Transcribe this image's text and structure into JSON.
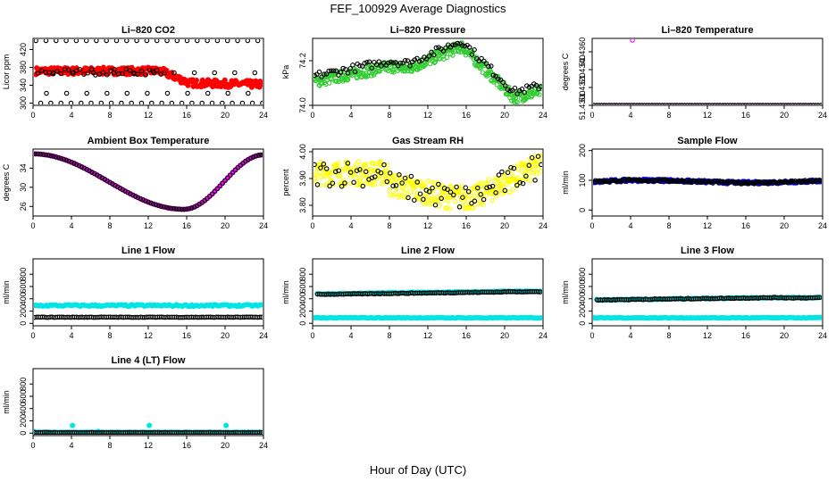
{
  "figure": {
    "title": "FEF_100929  Average Diagnostics",
    "xlabel": "Hour of Day (UTC)"
  },
  "chart_data": [
    {
      "type": "scatter",
      "title": "Li–820 CO2",
      "ylabel": "Licor ppm",
      "xlim": [
        0,
        24
      ],
      "ylim": [
        295,
        445
      ],
      "xticks": [
        0,
        4,
        8,
        12,
        16,
        20,
        24
      ],
      "yticks": [
        {
          "v": 300,
          "label": "300"
        },
        {
          "v": 340,
          "label": "340"
        },
        {
          "v": 380,
          "label": "380"
        },
        {
          "v": 420,
          "label": "420"
        }
      ],
      "series": [
        {
          "color": "#ff0000",
          "marker": "filled",
          "pattern": "co2"
        },
        {
          "color": "#000000",
          "marker": "open",
          "pattern": "co2_outliers"
        }
      ]
    },
    {
      "type": "scatter",
      "title": "Li–820 Pressure",
      "ylabel": "kPa",
      "xlim": [
        0,
        24
      ],
      "ylim": [
        74.0,
        74.3
      ],
      "xticks": [
        0,
        4,
        8,
        12,
        16,
        20,
        24
      ],
      "yticks": [
        {
          "v": 74.0,
          "label": "74.0"
        },
        {
          "v": 74.2,
          "label": "74.2"
        }
      ],
      "series": [
        {
          "color": "#33cc33",
          "marker": "open",
          "pattern": "pressure_dense"
        },
        {
          "color": "#000000",
          "marker": "open",
          "pattern": "pressure"
        }
      ]
    },
    {
      "type": "scatter",
      "title": "Li–820 Temperature",
      "ylabel": "degrees C",
      "xlim": [
        0,
        24
      ],
      "ylim": [
        51.43,
        51.4375
      ],
      "xticks": [
        0,
        4,
        8,
        12,
        16,
        20,
        24
      ],
      "yticks": [
        {
          "v": 51.43,
          "label": "51.4300"
        },
        {
          "v": 51.432,
          "label": "51.4320"
        },
        {
          "v": 51.434,
          "label": "51.4340"
        },
        {
          "v": 51.436,
          "label": "51.4360"
        }
      ],
      "series": [
        {
          "color": "#ff00ff",
          "marker": "open",
          "pattern": "temp_flat",
          "spike": [
            4.2,
            51.4373
          ]
        },
        {
          "color": "#000000",
          "marker": "open",
          "pattern": "temp_flat"
        }
      ]
    },
    {
      "type": "scatter",
      "title": "Ambient Box Temperature",
      "ylabel": "degrees C",
      "xlim": [
        0,
        24
      ],
      "ylim": [
        24,
        38
      ],
      "xticks": [
        0,
        4,
        8,
        12,
        16,
        20,
        24
      ],
      "yticks": [
        {
          "v": 26,
          "label": "26"
        },
        {
          "v": 30,
          "label": "30"
        },
        {
          "v": 34,
          "label": "34"
        }
      ],
      "series": [
        {
          "color": "#ff00ff",
          "marker": "filled",
          "pattern": "ambient"
        },
        {
          "color": "#000000",
          "marker": "open",
          "pattern": "ambient"
        }
      ]
    },
    {
      "type": "scatter",
      "title": "Gas Stream RH",
      "ylabel": "percent",
      "xlim": [
        0,
        24
      ],
      "ylim": [
        3.76,
        4.01
      ],
      "xticks": [
        0,
        4,
        8,
        12,
        16,
        20,
        24
      ],
      "yticks": [
        {
          "v": 3.8,
          "label": "3.80"
        },
        {
          "v": 3.9,
          "label": "3.90"
        },
        {
          "v": 4.0,
          "label": "4.00"
        }
      ],
      "series": [
        {
          "color": "#ffff00",
          "marker": "open",
          "pattern": "rh_dense"
        },
        {
          "color": "#000000",
          "marker": "open",
          "pattern": "rh"
        }
      ]
    },
    {
      "type": "scatter",
      "title": "Sample Flow",
      "ylabel": "ml/min",
      "xlim": [
        0,
        24
      ],
      "ylim": [
        -20,
        205
      ],
      "xticks": [
        0,
        4,
        8,
        12,
        16,
        20,
        24
      ],
      "yticks": [
        {
          "v": 0,
          "label": "0"
        },
        {
          "v": 100,
          "label": "100"
        },
        {
          "v": 200,
          "label": "200"
        }
      ],
      "series": [
        {
          "color": "#0000ff",
          "marker": "filled",
          "pattern": "sample"
        },
        {
          "color": "#000000",
          "marker": "open",
          "pattern": "sample"
        }
      ]
    },
    {
      "type": "scatter",
      "title": "Line 1 Flow",
      "ylabel": "ml/min",
      "xlim": [
        0,
        24
      ],
      "ylim": [
        -40,
        1050
      ],
      "xticks": [
        0,
        4,
        8,
        12,
        16,
        20,
        24
      ],
      "yticks": [
        {
          "v": 0,
          "label": "0"
        },
        {
          "v": 200,
          "label": "200"
        },
        {
          "v": 400,
          "label": "400"
        },
        {
          "v": 600,
          "label": "600"
        },
        {
          "v": 800,
          "label": "800"
        }
      ],
      "series": [
        {
          "color": "#00e5e5",
          "marker": "filled",
          "pattern": "flat",
          "level": 290,
          "amp": 14
        },
        {
          "color": "#000000",
          "marker": "open",
          "pattern": "flat",
          "level": 100,
          "amp": 4
        }
      ]
    },
    {
      "type": "scatter",
      "title": "Line 2 Flow",
      "ylabel": "ml/min",
      "xlim": [
        0,
        24
      ],
      "ylim": [
        -40,
        1050
      ],
      "xticks": [
        0,
        4,
        8,
        12,
        16,
        20,
        24
      ],
      "yticks": [
        {
          "v": 0,
          "label": "0"
        },
        {
          "v": 200,
          "label": "200"
        },
        {
          "v": 400,
          "label": "400"
        },
        {
          "v": 600,
          "label": "600"
        },
        {
          "v": 800,
          "label": "800"
        }
      ],
      "series": [
        {
          "color": "#00e5e5",
          "marker": "filled",
          "pattern": "flat",
          "level": 90,
          "amp": 5
        },
        {
          "color": "#00e5e5",
          "marker": "filled",
          "pattern": "step",
          "level": 480,
          "level2": 520,
          "amp": 6
        },
        {
          "color": "#000000",
          "marker": "open",
          "pattern": "step",
          "level": 470,
          "level2": 515,
          "amp": 5
        }
      ]
    },
    {
      "type": "scatter",
      "title": "Line 3 Flow",
      "ylabel": "ml/min",
      "xlim": [
        0,
        24
      ],
      "ylim": [
        -40,
        1050
      ],
      "xticks": [
        0,
        4,
        8,
        12,
        16,
        20,
        24
      ],
      "yticks": [
        {
          "v": 0,
          "label": "0"
        },
        {
          "v": 200,
          "label": "200"
        },
        {
          "v": 400,
          "label": "400"
        },
        {
          "v": 600,
          "label": "600"
        },
        {
          "v": 800,
          "label": "800"
        }
      ],
      "series": [
        {
          "color": "#00e5e5",
          "marker": "filled",
          "pattern": "flat",
          "level": 90,
          "amp": 5
        },
        {
          "color": "#00e5e5",
          "marker": "filled",
          "pattern": "step",
          "level": 380,
          "level2": 420,
          "amp": 8
        },
        {
          "color": "#000000",
          "marker": "open",
          "pattern": "step",
          "level": 380,
          "level2": 415,
          "amp": 6
        }
      ]
    },
    {
      "type": "scatter",
      "title": "Line 4 (LT) Flow",
      "ylabel": "ml/min",
      "xlim": [
        0,
        24
      ],
      "ylim": [
        -40,
        1050
      ],
      "xticks": [
        0,
        4,
        8,
        12,
        16,
        20,
        24
      ],
      "yticks": [
        {
          "v": 0,
          "label": "0"
        },
        {
          "v": 200,
          "label": "200"
        },
        {
          "v": 400,
          "label": "400"
        },
        {
          "v": 600,
          "label": "600"
        },
        {
          "v": 800,
          "label": "800"
        }
      ],
      "series": [
        {
          "color": "#00e5e5",
          "marker": "filled",
          "pattern": "line4"
        },
        {
          "color": "#000000",
          "marker": "open",
          "pattern": "flat",
          "level": 10,
          "amp": 2
        }
      ]
    }
  ]
}
